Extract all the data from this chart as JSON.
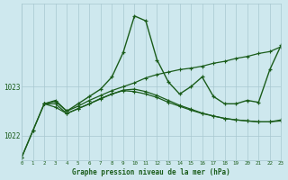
{
  "xlabel": "Graphe pression niveau de la mer (hPa)",
  "bg_color": "#cee8ee",
  "grid_color": "#a8c8d0",
  "line_color": "#1a5c1a",
  "xmin": 0,
  "xmax": 23,
  "ymin": 1021.5,
  "ymax": 1024.7,
  "yticks": [
    1022,
    1023
  ],
  "xticks": [
    0,
    1,
    2,
    3,
    4,
    5,
    6,
    7,
    8,
    9,
    10,
    11,
    12,
    13,
    14,
    15,
    16,
    17,
    18,
    19,
    20,
    21,
    22,
    23
  ],
  "series_spike": {
    "x": [
      0,
      1,
      2,
      3,
      4,
      5,
      6,
      7,
      8,
      9,
      10,
      11,
      12,
      13,
      14,
      15,
      16,
      17,
      18,
      19,
      20,
      21,
      22,
      23
    ],
    "y": [
      1021.55,
      1022.1,
      1022.65,
      1022.7,
      1022.5,
      1022.65,
      1022.8,
      1022.95,
      1023.2,
      1023.7,
      1024.45,
      1024.35,
      1023.55,
      1023.1,
      1022.85,
      1023.0,
      1023.2,
      1022.8,
      1022.65,
      1022.65,
      1022.72,
      1022.68,
      1023.35,
      1023.85
    ]
  },
  "series_linear": {
    "x": [
      2,
      3,
      4,
      5,
      6,
      7,
      8,
      9,
      10,
      11,
      12,
      13,
      14,
      15,
      16,
      17,
      18,
      19,
      20,
      21,
      22,
      23
    ],
    "y": [
      1022.65,
      1022.72,
      1022.5,
      1022.6,
      1022.72,
      1022.82,
      1022.92,
      1023.0,
      1023.08,
      1023.18,
      1023.25,
      1023.3,
      1023.35,
      1023.38,
      1023.42,
      1023.48,
      1023.52,
      1023.58,
      1023.62,
      1023.68,
      1023.72,
      1023.82
    ]
  },
  "series_flat1": {
    "x": [
      0,
      1,
      2,
      3,
      4,
      5,
      6,
      7,
      8,
      9,
      10,
      11,
      12,
      13,
      14,
      15,
      16,
      17,
      18,
      19,
      20,
      21,
      22,
      23
    ],
    "y": [
      1021.55,
      1022.1,
      1022.65,
      1022.58,
      1022.45,
      1022.55,
      1022.65,
      1022.75,
      1022.85,
      1022.92,
      1022.9,
      1022.85,
      1022.78,
      1022.68,
      1022.6,
      1022.52,
      1022.45,
      1022.4,
      1022.35,
      1022.32,
      1022.3,
      1022.28,
      1022.28,
      1022.3
    ]
  },
  "series_flat2": {
    "x": [
      2,
      3,
      4,
      5,
      6,
      7,
      8,
      9,
      10,
      11,
      12,
      13,
      14,
      15,
      16,
      17,
      18,
      19,
      20,
      21,
      22,
      23
    ],
    "y": [
      1022.65,
      1022.65,
      1022.45,
      1022.55,
      1022.65,
      1022.76,
      1022.85,
      1022.93,
      1022.95,
      1022.9,
      1022.82,
      1022.72,
      1022.62,
      1022.54,
      1022.46,
      1022.4,
      1022.35,
      1022.32,
      1022.3,
      1022.28,
      1022.28,
      1022.32
    ]
  }
}
